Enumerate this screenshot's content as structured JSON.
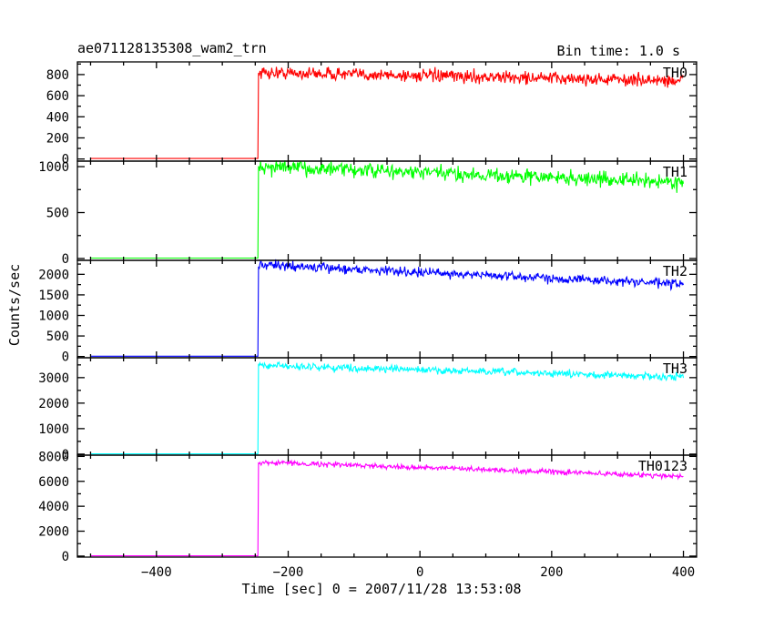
{
  "header": {
    "title": "ae071128135308_wam2_trn",
    "bin_time": "Bin time: 1.0 s"
  },
  "chart_data": {
    "type": "line",
    "xlabel": "Time [sec] 0 = 2007/11/28 13:53:08",
    "ylabel": "Counts/sec",
    "xlim": [
      -520,
      420
    ],
    "x_ticks": [
      -400,
      -200,
      0,
      200,
      400
    ],
    "x_tick_labels": [
      "−400",
      "−200",
      "0",
      "200",
      "400"
    ],
    "trigger_time": -245,
    "panels": [
      {
        "name": "TH0",
        "color": "#ff0000",
        "ylim": [
          -20,
          920
        ],
        "y_ticks": [
          0,
          200,
          400,
          600,
          800
        ],
        "y_tick_labels": [
          "0",
          "200",
          "400",
          "600",
          "800"
        ],
        "pre_level": 5,
        "post_start": 820,
        "post_end": 740,
        "noise": 30
      },
      {
        "name": "TH1",
        "color": "#00ff00",
        "ylim": [
          -20,
          1060
        ],
        "y_ticks": [
          0,
          500,
          1000
        ],
        "y_tick_labels": [
          "0",
          "500",
          "1000"
        ],
        "pre_level": 5,
        "post_start": 1000,
        "post_end": 830,
        "noise": 40
      },
      {
        "name": "TH2",
        "color": "#0000ff",
        "ylim": [
          -30,
          2340
        ],
        "y_ticks": [
          0,
          500,
          1000,
          1500,
          2000
        ],
        "y_tick_labels": [
          "0",
          "500",
          "1000",
          "1500",
          "2000"
        ],
        "pre_level": 8,
        "post_start": 2230,
        "post_end": 1760,
        "noise": 55
      },
      {
        "name": "TH3",
        "color": "#00ffff",
        "ylim": [
          -40,
          3780
        ],
        "y_ticks": [
          0,
          1000,
          2000,
          3000
        ],
        "y_tick_labels": [
          "0",
          "1000",
          "2000",
          "3000"
        ],
        "pre_level": 10,
        "post_start": 3480,
        "post_end": 3020,
        "noise": 70
      },
      {
        "name": "TH0123",
        "color": "#ff00ff",
        "ylim": [
          -80,
          8100
        ],
        "y_ticks": [
          0,
          2000,
          4000,
          6000,
          8000
        ],
        "y_tick_labels": [
          "0",
          "2000",
          "4000",
          "6000",
          "8000"
        ],
        "pre_level": 20,
        "post_start": 7550,
        "post_end": 6400,
        "noise": 100
      }
    ]
  }
}
